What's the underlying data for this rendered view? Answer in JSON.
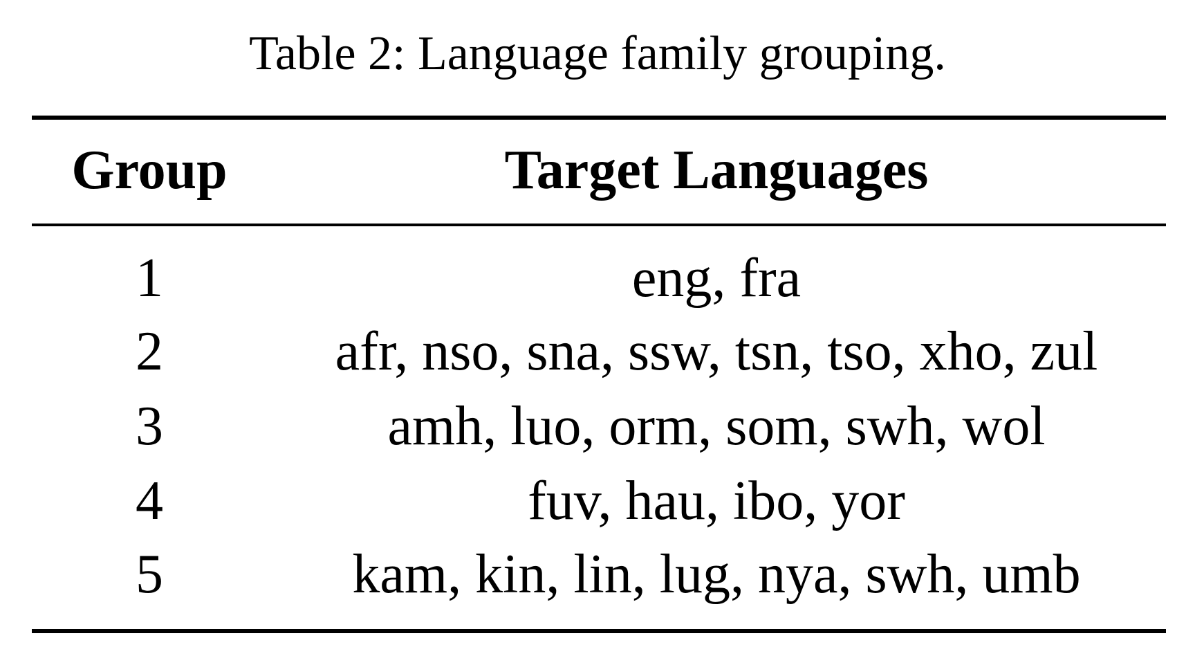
{
  "caption": "Table 2: Language family grouping.",
  "table": {
    "headers": {
      "group": "Group",
      "languages": "Target Languages"
    },
    "rows": [
      {
        "group": "1",
        "languages": "eng, fra"
      },
      {
        "group": "2",
        "languages": "afr, nso, sna, ssw, tsn, tso, xho, zul"
      },
      {
        "group": "3",
        "languages": "amh, luo, orm, som, swh, wol"
      },
      {
        "group": "4",
        "languages": "fuv, hau, ibo, yor"
      },
      {
        "group": "5",
        "languages": "kam, kin, lin, lug, nya, swh, umb"
      }
    ]
  }
}
